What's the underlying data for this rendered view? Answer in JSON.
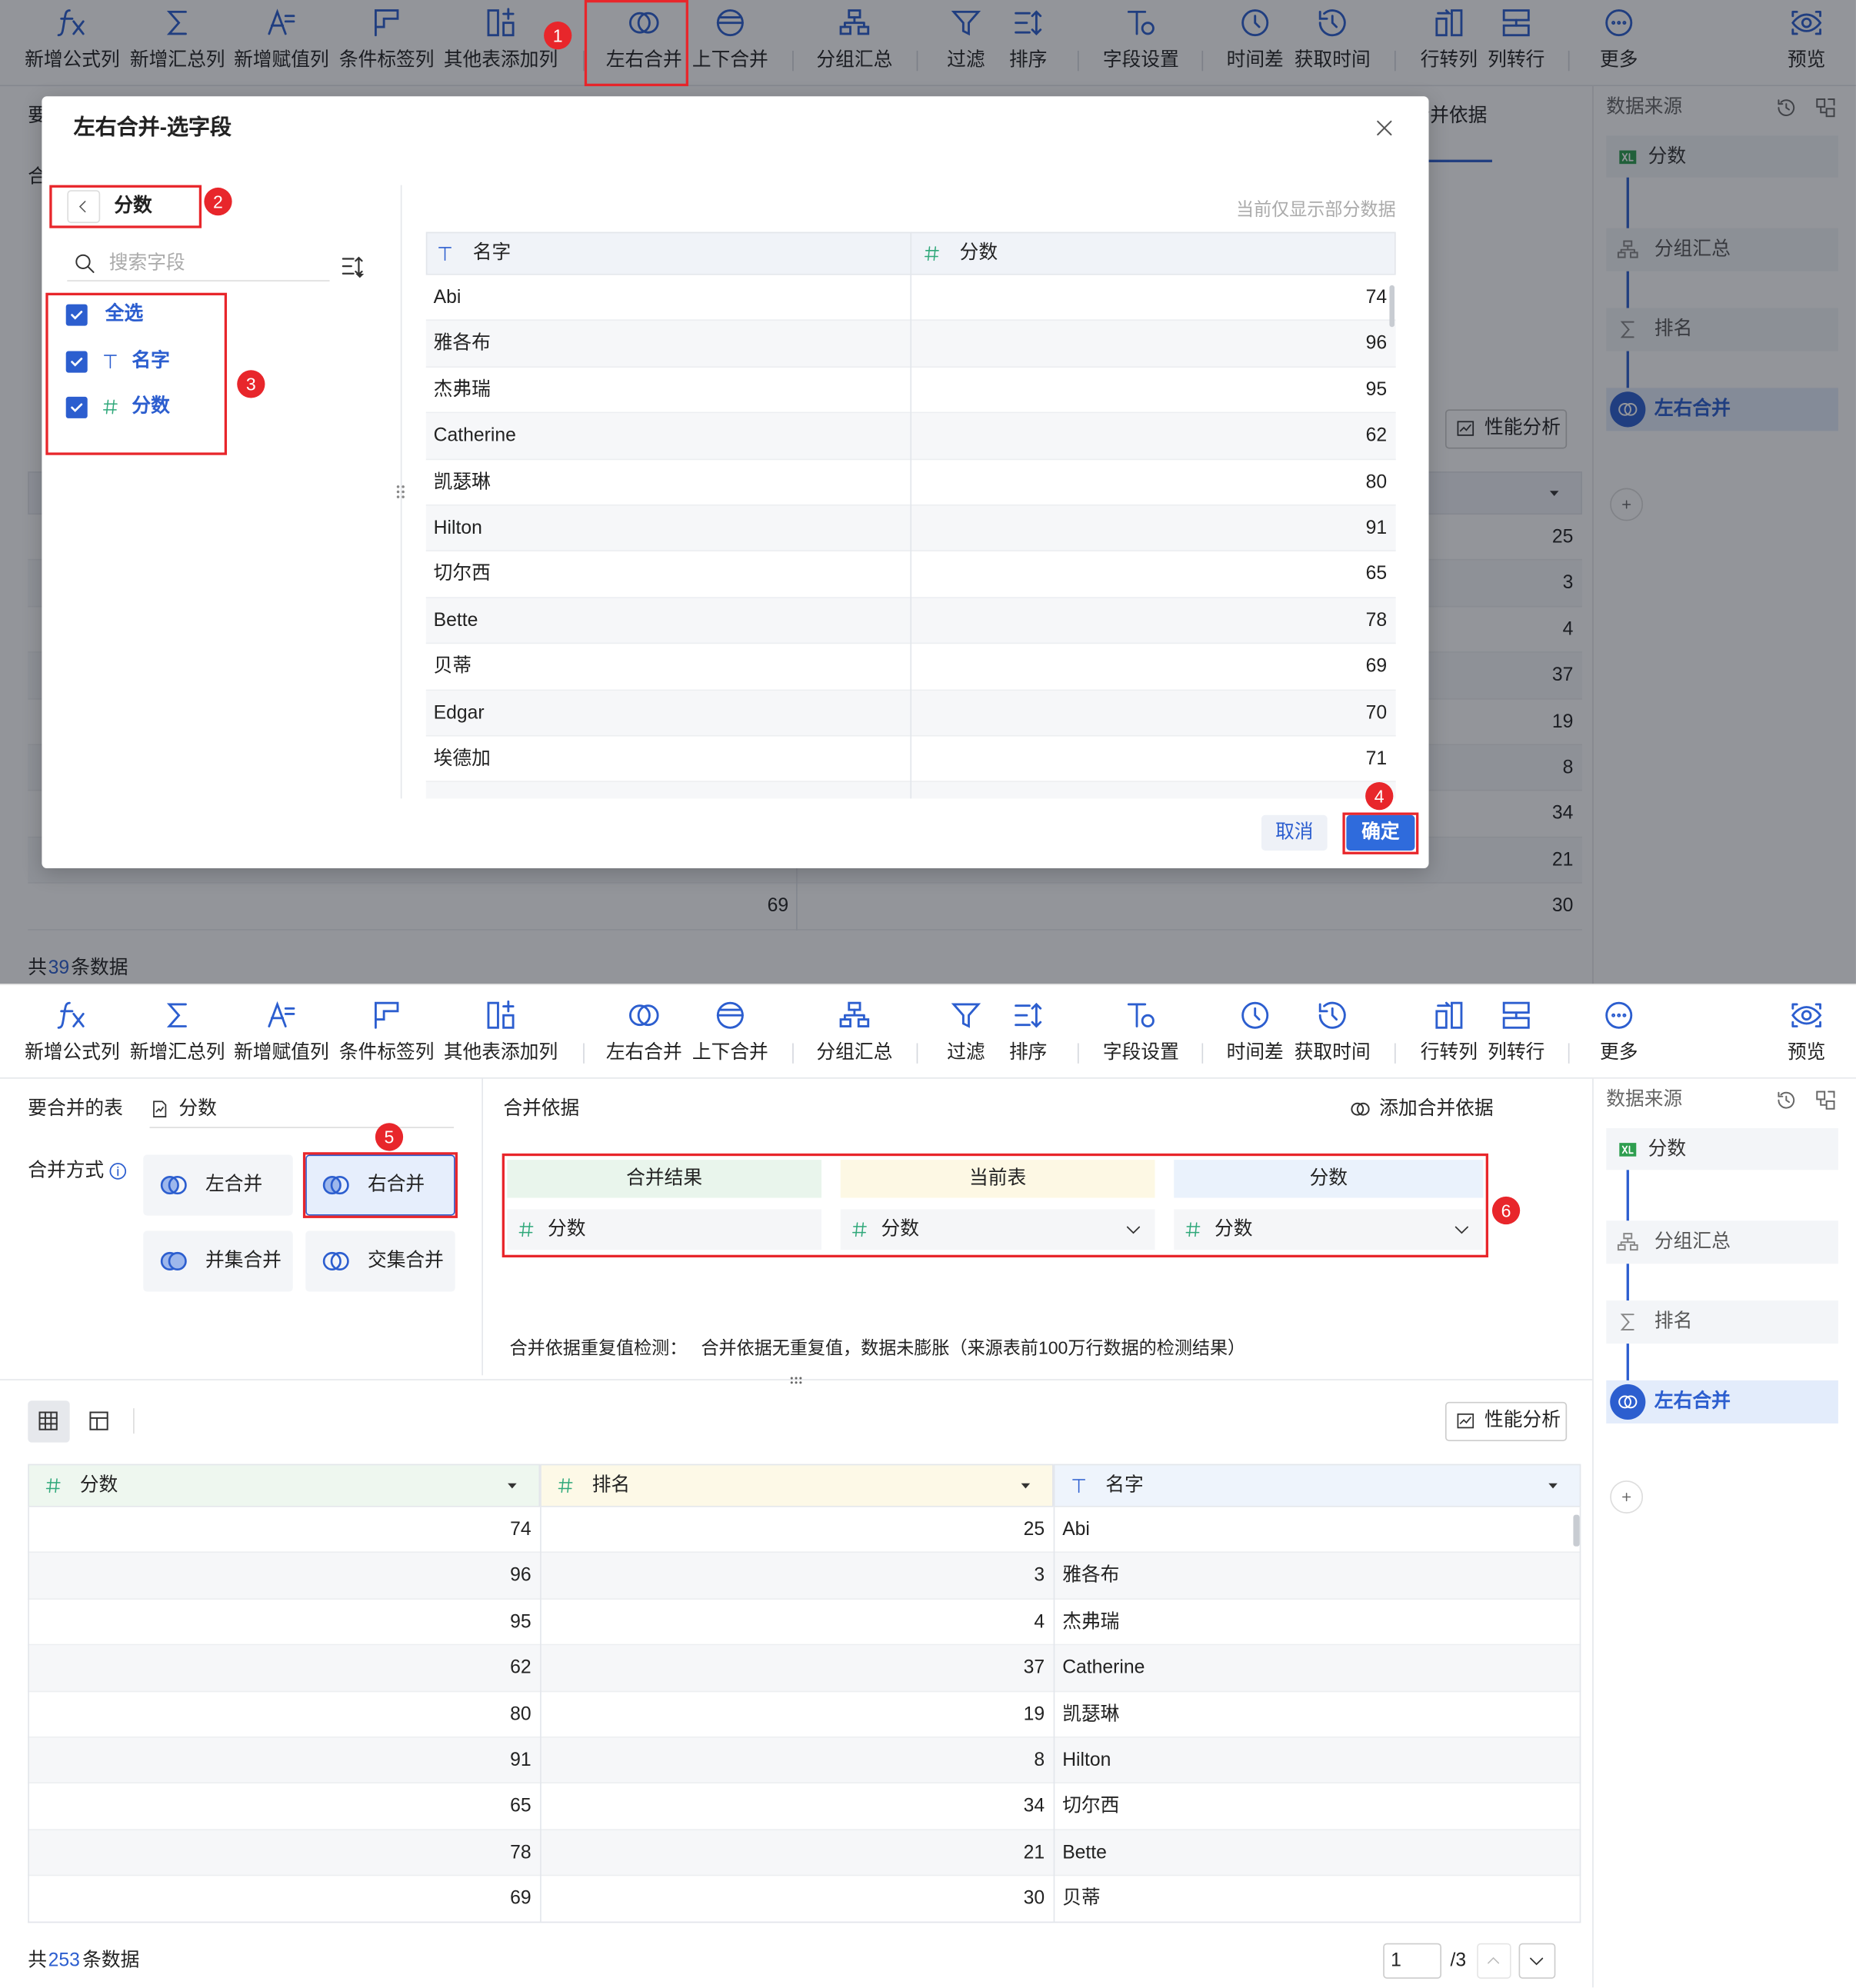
{
  "toolbar": [
    "新增公式列",
    "新增汇总列",
    "新增赋值列",
    "条件标签列",
    "其他表添加列",
    "左右合并",
    "上下合并",
    "分组汇总",
    "过滤",
    "排序",
    "字段设置",
    "时间差",
    "获取时间",
    "行转列",
    "列转行",
    "更多",
    "预览"
  ],
  "sidebar": {
    "title": "数据来源",
    "source": "分数",
    "steps": [
      "分组汇总",
      "排名",
      "左右合并"
    ]
  },
  "step_markers": [
    1,
    2,
    3,
    4,
    5,
    6
  ],
  "dialog_view": {
    "background": {
      "merge_table_label": "要合并的表",
      "merge_method_label": "合并方式",
      "merge_basis_label": "合并依据",
      "performance_button": "性能分析",
      "table_values": [
        25,
        3,
        4,
        37,
        19,
        8,
        34,
        21,
        30
      ],
      "left_value": 69,
      "footer": {
        "prefix": "共",
        "count": 39,
        "suffix": "条数据"
      }
    },
    "dialog": {
      "title": "左右合并-选字段",
      "back_label": "分数",
      "search_placeholder": "搜索字段",
      "fields": [
        "全选",
        "名字",
        "分数"
      ],
      "preview_note": "当前仅显示部分数据",
      "columns": [
        "名字",
        "分数"
      ],
      "rows": [
        [
          "Abi",
          74
        ],
        [
          "雅各布",
          96
        ],
        [
          "杰弗瑞",
          95
        ],
        [
          "Catherine",
          62
        ],
        [
          "凯瑟琳",
          80
        ],
        [
          "Hilton",
          91
        ],
        [
          "切尔西",
          65
        ],
        [
          "Bette",
          78
        ],
        [
          "贝蒂",
          69
        ],
        [
          "Edgar",
          70
        ],
        [
          "埃德加",
          71
        ]
      ],
      "cancel": "取消",
      "confirm": "确定"
    }
  },
  "merge_view": {
    "merge_table_label": "要合并的表",
    "merge_table": "分数",
    "merge_method_label": "合并方式",
    "methods": [
      "左合并",
      "右合并",
      "并集合并",
      "交集合并"
    ],
    "basis_label": "合并依据",
    "add_basis": "添加合并依据",
    "basis_columns": [
      "合并结果",
      "当前表",
      "分数"
    ],
    "basis_values": [
      "分数",
      "分数",
      "分数"
    ],
    "check_label": "合并依据重复值检测：",
    "check_result": "合并依据无重复值，数据未膨胀（来源表前100万行数据的检测结果）",
    "performance_button": "性能分析",
    "columns": [
      "分数",
      "排名",
      "名字"
    ],
    "rows": [
      [
        74,
        25,
        "Abi"
      ],
      [
        96,
        3,
        "雅各布"
      ],
      [
        95,
        4,
        "杰弗瑞"
      ],
      [
        62,
        37,
        "Catherine"
      ],
      [
        80,
        19,
        "凯瑟琳"
      ],
      [
        91,
        8,
        "Hilton"
      ],
      [
        65,
        34,
        "切尔西"
      ],
      [
        78,
        21,
        "Bette"
      ],
      [
        69,
        30,
        "贝蒂"
      ]
    ],
    "footer": {
      "prefix": "共",
      "count": 253,
      "suffix": "条数据"
    },
    "page": 1,
    "page_total": "/3"
  }
}
